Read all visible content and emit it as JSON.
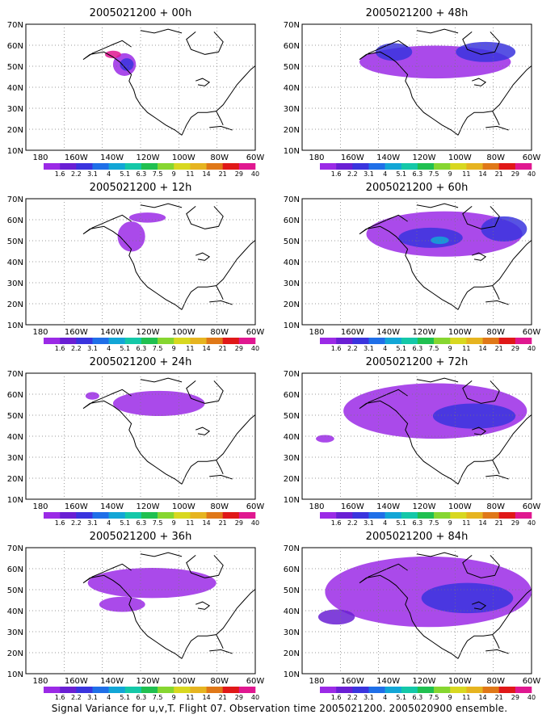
{
  "figure": {
    "caption": "Signal Variance for u,v,T. Flight 07. Observation time 2005021200. 2005020900 ensemble.",
    "longitude_ticks": [
      "180",
      "160W",
      "140W",
      "120W",
      "100W",
      "80W",
      "60W"
    ],
    "latitude_ticks": [
      "70N",
      "60N",
      "50N",
      "40N",
      "30N",
      "20N",
      "10N"
    ],
    "colorbar": {
      "labels": [
        "1.6",
        "2.2",
        "3.1",
        "4",
        "5.1",
        "6.3",
        "7.5",
        "9",
        "11",
        "14",
        "21",
        "29",
        "40"
      ],
      "colors": [
        "#9b2ae6",
        "#6a1fd4",
        "#3a34de",
        "#1f6fe8",
        "#12a6d6",
        "#14c8a8",
        "#20c050",
        "#86d630",
        "#d8d820",
        "#e6b420",
        "#e07818",
        "#e01818",
        "#e01890"
      ]
    },
    "panels": [
      {
        "title": "2005021200 + 00h"
      },
      {
        "title": "2005021200 + 48h"
      },
      {
        "title": "2005021200 + 12h"
      },
      {
        "title": "2005021200 + 60h"
      },
      {
        "title": "2005021200 + 24h"
      },
      {
        "title": "2005021200 + 72h"
      },
      {
        "title": "2005021200 + 36h"
      },
      {
        "title": "2005021200 + 84h"
      }
    ]
  }
}
